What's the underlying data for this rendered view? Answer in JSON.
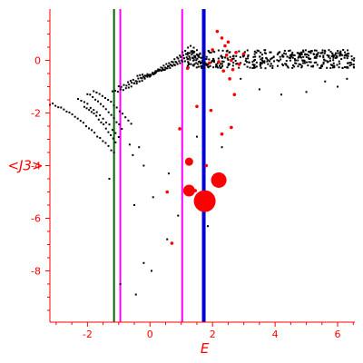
{
  "chart_data": {
    "type": "scatter",
    "xlabel": "E",
    "ylabel": "<J3>",
    "xlim": [
      -3.2,
      6.55
    ],
    "ylim": [
      -9.95,
      1.95
    ],
    "x_ticks": [
      -2,
      0,
      2,
      4,
      6
    ],
    "x_tick_labels": [
      "-2",
      "0",
      "2",
      "4",
      "6"
    ],
    "y_ticks": [
      -8,
      -6,
      -4,
      -2,
      0
    ],
    "y_tick_labels": [
      "-8",
      "-6",
      "-4",
      "-2",
      "0"
    ],
    "grid": false,
    "legend": "none",
    "colors": {
      "axis": "#ff0000",
      "labels": "#ff0000",
      "dots": "#000000",
      "weighted": "#ff0000",
      "line_green": "#006400",
      "line_magenta": "#ff00ff",
      "line_blue": "#0000dd"
    },
    "vertical_lines": [
      {
        "x": -1.15,
        "color": "#006400",
        "weight": "thin"
      },
      {
        "x": -0.95,
        "color": "#ff00ff",
        "weight": "thin"
      },
      {
        "x": 1.03,
        "color": "#ff00ff",
        "weight": "thin"
      },
      {
        "x": 1.72,
        "color": "#0000dd",
        "weight": "thick"
      }
    ],
    "black_branches": [
      {
        "x_range": [
          -3.2,
          -1.15
        ],
        "y_at_start": -1.65,
        "y_at_end": -3.5,
        "points": 24
      },
      {
        "x_range": [
          -2.1,
          -1.1
        ],
        "y_at_start": -1.8,
        "y_at_end": -3.1,
        "points": 14
      },
      {
        "x_range": [
          -2.3,
          -1.0
        ],
        "y_at_start": -1.5,
        "y_at_end": -2.9,
        "points": 14
      },
      {
        "x_range": [
          -2.0,
          -0.9
        ],
        "y_at_start": -1.3,
        "y_at_end": -2.6,
        "points": 14
      },
      {
        "x_range": [
          -1.8,
          -0.6
        ],
        "y_at_start": -1.2,
        "y_at_end": -2.4,
        "points": 14
      },
      {
        "x_range": [
          -1.2,
          1.3
        ],
        "y_at_start": -1.2,
        "y_at_end": 0.55,
        "points": 30
      },
      {
        "x_range": [
          -1.0,
          1.4
        ],
        "y_at_start": -1.0,
        "y_at_end": 0.45,
        "points": 30
      },
      {
        "x_range": [
          -0.7,
          1.5
        ],
        "y_at_start": -0.8,
        "y_at_end": 0.35,
        "points": 28
      },
      {
        "x_range": [
          -0.4,
          1.6
        ],
        "y_at_start": -0.6,
        "y_at_end": 0.25,
        "points": 26
      }
    ],
    "black_band": {
      "x_range": [
        1.2,
        6.55
      ],
      "y_center": 0.05,
      "y_spread": 0.35,
      "points": 420
    },
    "black_scatter": [
      {
        "x": -0.65,
        "y": -3.2
      },
      {
        "x": -0.55,
        "y": -3.6
      },
      {
        "x": -0.35,
        "y": -3.3
      },
      {
        "x": -0.95,
        "y": -8.5
      },
      {
        "x": -0.45,
        "y": -8.9
      },
      {
        "x": -0.2,
        "y": -7.7
      },
      {
        "x": 0.05,
        "y": -8.0
      },
      {
        "x": -0.5,
        "y": -5.5
      },
      {
        "x": 0.1,
        "y": -5.2
      },
      {
        "x": 0.55,
        "y": -6.8
      },
      {
        "x": 0.9,
        "y": -5.9
      },
      {
        "x": 1.25,
        "y": -4.8
      },
      {
        "x": 1.85,
        "y": -6.3
      },
      {
        "x": 1.5,
        "y": -2.9
      },
      {
        "x": 2.3,
        "y": -3.3
      },
      {
        "x": 2.9,
        "y": -0.7
      },
      {
        "x": 3.5,
        "y": -1.1
      },
      {
        "x": 4.2,
        "y": -1.3
      },
      {
        "x": 5.0,
        "y": -1.2
      },
      {
        "x": 6.0,
        "y": -1.0
      },
      {
        "x": 6.3,
        "y": -0.7
      },
      {
        "x": 5.6,
        "y": -0.8
      },
      {
        "x": -1.3,
        "y": -4.5
      },
      {
        "x": -0.2,
        "y": -4.0
      },
      {
        "x": 0.6,
        "y": -4.3
      }
    ],
    "red_points": [
      {
        "x": 1.75,
        "y": -5.35,
        "weight": 5
      },
      {
        "x": 2.2,
        "y": -4.55,
        "weight": 4
      },
      {
        "x": 1.25,
        "y": -4.95,
        "weight": 3
      },
      {
        "x": 1.25,
        "y": -3.85,
        "weight": 2
      },
      {
        "x": 1.45,
        "y": -4.95,
        "weight": 1
      },
      {
        "x": 1.8,
        "y": -4.0,
        "weight": 1
      },
      {
        "x": 2.3,
        "y": -2.8,
        "weight": 1
      },
      {
        "x": 2.6,
        "y": -2.55,
        "weight": 1
      },
      {
        "x": 1.95,
        "y": -1.9,
        "weight": 1
      },
      {
        "x": 1.5,
        "y": -1.75,
        "weight": 1
      },
      {
        "x": 2.7,
        "y": -1.3,
        "weight": 1
      },
      {
        "x": 2.55,
        "y": -0.7,
        "weight": 1
      },
      {
        "x": 0.7,
        "y": -6.95,
        "weight": 1
      },
      {
        "x": 0.55,
        "y": -5.0,
        "weight": 1
      },
      {
        "x": 0.95,
        "y": -2.6,
        "weight": 1
      },
      {
        "x": 1.2,
        "y": -0.3,
        "weight": 1
      },
      {
        "x": 2.15,
        "y": 1.1,
        "weight": 1
      },
      {
        "x": 2.3,
        "y": 0.85,
        "weight": 1
      },
      {
        "x": 2.4,
        "y": 0.55,
        "weight": 1
      },
      {
        "x": 2.45,
        "y": 0.2,
        "weight": 1
      },
      {
        "x": 2.6,
        "y": 0.0,
        "weight": 1
      },
      {
        "x": 2.75,
        "y": 0.3,
        "weight": 1
      },
      {
        "x": 2.85,
        "y": -0.15,
        "weight": 1
      },
      {
        "x": 2.2,
        "y": -0.05,
        "weight": 1
      },
      {
        "x": 2.5,
        "y": 0.7,
        "weight": 1
      },
      {
        "x": 2.0,
        "y": 0.4,
        "weight": 1
      },
      {
        "x": 1.9,
        "y": -0.1,
        "weight": 1
      },
      {
        "x": 2.65,
        "y": -0.35,
        "weight": 1
      },
      {
        "x": 2.35,
        "y": -0.4,
        "weight": 1
      },
      {
        "x": 3.0,
        "y": 0.25,
        "weight": 1
      }
    ]
  }
}
